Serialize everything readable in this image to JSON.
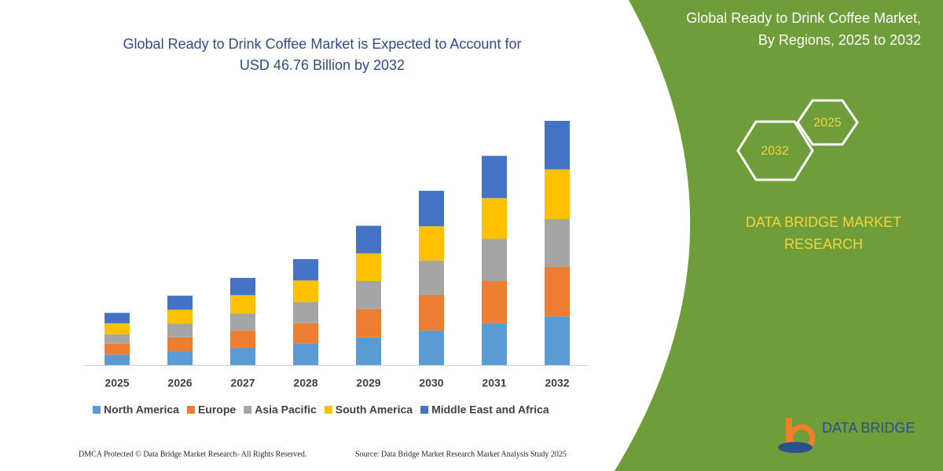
{
  "chart_data": {
    "type": "bar",
    "title": "Global Ready to Drink Coffee Market is Expected to Account for USD 46.76 Billion by 2032",
    "categories": [
      "2025",
      "2026",
      "2027",
      "2028",
      "2029",
      "2030",
      "2031",
      "2032"
    ],
    "stacked": true,
    "ylim": [
      0,
      46.8
    ],
    "series": [
      {
        "name": "North America",
        "color": "#5b9bd5",
        "values": [
          2.0,
          2.7,
          3.3,
          4.1,
          5.3,
          6.6,
          8.0,
          9.3
        ]
      },
      {
        "name": "Europe",
        "color": "#ed7d31",
        "values": [
          2.1,
          2.6,
          3.3,
          3.9,
          5.4,
          6.8,
          8.1,
          9.5
        ]
      },
      {
        "name": "Asia Pacific",
        "color": "#a5a5a5",
        "values": [
          1.8,
          2.6,
          3.3,
          4.1,
          5.4,
          6.6,
          8.1,
          9.2
        ]
      },
      {
        "name": "South America",
        "color": "#ffc000",
        "values": [
          2.1,
          2.7,
          3.5,
          4.1,
          5.3,
          6.6,
          7.8,
          9.5
        ]
      },
      {
        "name": "Middle East and Africa",
        "color": "#4472c4",
        "values": [
          2.0,
          2.7,
          3.3,
          4.1,
          5.3,
          6.8,
          8.1,
          9.3
        ]
      }
    ]
  },
  "sidebar": {
    "title_line1": "Global Ready to Drink Coffee Market,",
    "title_line2": "By Regions, 2025 to 2032",
    "hex_back": "2025",
    "hex_front": "2032",
    "brand_line1": "DATA BRIDGE MARKET",
    "brand_line2": "RESEARCH",
    "logo_text": "DATA BRIDGE"
  },
  "footer": {
    "left": "DMCA Protected © Data Bridge Market Research-  All Rights Reserved.",
    "right": "Source: Data Bridge Market Research  Market Analysis Study 2025"
  }
}
